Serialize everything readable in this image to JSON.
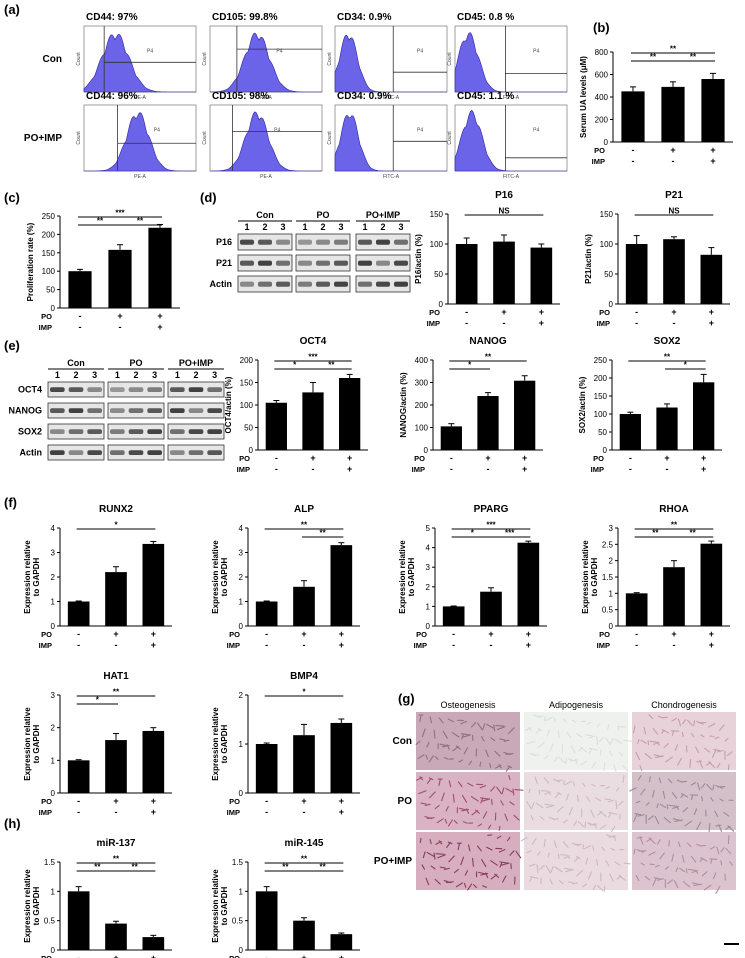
{
  "panel_labels": {
    "a": "(a)",
    "b": "(b)",
    "c": "(c)",
    "d": "(d)",
    "e": "(e)",
    "f": "(f)",
    "g": "(g)",
    "h": "(h)"
  },
  "groups": {
    "con": "Con",
    "po": "PO",
    "poimp": "PO+IMP"
  },
  "treat": {
    "po": "PO",
    "imp": "IMP"
  },
  "flow": {
    "rows": [
      "Con",
      "PO+IMP"
    ],
    "gate": "P4",
    "xaxis": [
      "PE-A",
      "PE-A",
      "FITC-A",
      "FITC-A"
    ],
    "titles": [
      [
        "CD44: 97%",
        "CD105: 99.8%",
        "CD34: 0.9%",
        "CD45: 0.8 %"
      ],
      [
        "CD44: 96%",
        "CD105: 98%",
        "CD34: 0.9%",
        "CD45: 1.1 %"
      ]
    ]
  },
  "blots": {
    "lanes": [
      "1",
      "2",
      "3"
    ],
    "d_rows": [
      "P16",
      "P21",
      "Actin"
    ],
    "e_rows": [
      "OCT4",
      "NANOG",
      "SOX2",
      "Actin"
    ]
  },
  "stain": {
    "cols": [
      "Osteogenesis",
      "Adipogenesis",
      "Chondrogenesis"
    ],
    "rows": [
      "Con",
      "PO",
      "PO+IMP"
    ]
  },
  "chart_data": [
    {
      "id": "b",
      "type": "bar",
      "title": "",
      "ylabel": "Serum UA levels (μM)",
      "ylim": [
        0,
        800
      ],
      "yticks": [
        "0",
        "200",
        "400",
        "600",
        "800"
      ],
      "values": [
        450,
        490,
        560
      ],
      "errors": [
        40,
        45,
        50
      ],
      "po": [
        "-",
        "+",
        "+"
      ],
      "imp": [
        "-",
        "-",
        "+"
      ],
      "sig": [
        {
          "a": 0,
          "b": 1,
          "label": "**",
          "level": 1
        },
        {
          "a": 1,
          "b": 2,
          "label": "**",
          "level": 1
        },
        {
          "a": 0,
          "b": 2,
          "label": "**",
          "level": 0
        }
      ]
    },
    {
      "id": "c",
      "type": "bar",
      "title": "",
      "ylabel": "Proliferation rate (%)",
      "ylim": [
        0,
        250
      ],
      "yticks": [
        "0",
        "50",
        "100",
        "150",
        "200",
        "250"
      ],
      "values": [
        100,
        158,
        218
      ],
      "errors": [
        5,
        14,
        9
      ],
      "po": [
        "-",
        "+",
        "+"
      ],
      "imp": [
        "-",
        "-",
        "+"
      ],
      "sig": [
        {
          "a": 0,
          "b": 1,
          "label": "**",
          "level": 1
        },
        {
          "a": 1,
          "b": 2,
          "label": "**",
          "level": 1
        },
        {
          "a": 0,
          "b": 2,
          "label": "***",
          "level": 0
        }
      ]
    },
    {
      "id": "p16",
      "type": "bar",
      "title": "P16",
      "ylabel": "P16/actin (%)",
      "ylim": [
        0,
        150
      ],
      "yticks": [
        "0",
        "50",
        "100",
        "150"
      ],
      "values": [
        100,
        104,
        94
      ],
      "errors": [
        10,
        11,
        6
      ],
      "po": [
        "-",
        "+",
        "+"
      ],
      "imp": [
        "-",
        "-",
        "+"
      ],
      "sig": [
        {
          "a": 0,
          "b": 2,
          "label": "NS",
          "level": 0
        }
      ]
    },
    {
      "id": "p21",
      "type": "bar",
      "title": "P21",
      "ylabel": "P21/actin (%)",
      "ylim": [
        0,
        150
      ],
      "yticks": [
        "0",
        "50",
        "100",
        "150"
      ],
      "values": [
        100,
        108,
        82
      ],
      "errors": [
        14,
        4,
        12
      ],
      "po": [
        "-",
        "+",
        "+"
      ],
      "imp": [
        "-",
        "-",
        "+"
      ],
      "sig": [
        {
          "a": 0,
          "b": 2,
          "label": "NS",
          "level": 0
        }
      ]
    },
    {
      "id": "oct4",
      "type": "bar",
      "title": "OCT4",
      "ylabel": "OCT4/actin (%)",
      "ylim": [
        0,
        200
      ],
      "yticks": [
        "0",
        "50",
        "100",
        "150",
        "200"
      ],
      "values": [
        105,
        128,
        160
      ],
      "errors": [
        5,
        22,
        8
      ],
      "po": [
        "-",
        "+",
        "+"
      ],
      "imp": [
        "-",
        "-",
        "+"
      ],
      "sig": [
        {
          "a": 0,
          "b": 1,
          "label": "*",
          "level": 1
        },
        {
          "a": 1,
          "b": 2,
          "label": "**",
          "level": 1
        },
        {
          "a": 0,
          "b": 2,
          "label": "***",
          "level": 0
        }
      ]
    },
    {
      "id": "nanog",
      "type": "bar",
      "title": "NANOG",
      "ylabel": "NANOG/actin (%)",
      "ylim": [
        0,
        400
      ],
      "yticks": [
        "0",
        "100",
        "200",
        "300",
        "400"
      ],
      "values": [
        105,
        240,
        308
      ],
      "errors": [
        12,
        15,
        22
      ],
      "po": [
        "-",
        "+",
        "+"
      ],
      "imp": [
        "-",
        "-",
        "+"
      ],
      "sig": [
        {
          "a": 0,
          "b": 1,
          "label": "*",
          "level": 1
        },
        {
          "a": 0,
          "b": 2,
          "label": "**",
          "level": 0
        }
      ]
    },
    {
      "id": "sox2",
      "type": "bar",
      "title": "SOX2",
      "ylabel": "SOX2/actin (%)",
      "ylim": [
        0,
        250
      ],
      "yticks": [
        "0",
        "50",
        "100",
        "150",
        "200",
        "250"
      ],
      "values": [
        100,
        118,
        188
      ],
      "errors": [
        5,
        10,
        22
      ],
      "po": [
        "-",
        "+",
        "+"
      ],
      "imp": [
        "-",
        "-",
        "+"
      ],
      "sig": [
        {
          "a": 1,
          "b": 2,
          "label": "*",
          "level": 1
        },
        {
          "a": 0,
          "b": 2,
          "label": "**",
          "level": 0
        }
      ]
    },
    {
      "id": "runx2",
      "type": "bar",
      "title": "RUNX2",
      "ylabel": "Expression relative to GAPDH",
      "ylim": [
        0,
        4
      ],
      "yticks": [
        "0",
        "1",
        "2",
        "3",
        "4"
      ],
      "values": [
        1.0,
        2.2,
        3.35
      ],
      "errors": [
        0.02,
        0.22,
        0.1
      ],
      "po": [
        "-",
        "+",
        "+"
      ],
      "imp": [
        "-",
        "-",
        "+"
      ],
      "sig": [
        {
          "a": 0,
          "b": 2,
          "label": "*",
          "level": 0
        }
      ]
    },
    {
      "id": "alp",
      "type": "bar",
      "title": "ALP",
      "ylabel": "Expression relative to GAPDH",
      "ylim": [
        0,
        4
      ],
      "yticks": [
        "0",
        "1",
        "2",
        "3",
        "4"
      ],
      "values": [
        1.0,
        1.6,
        3.3
      ],
      "errors": [
        0.02,
        0.25,
        0.1
      ],
      "po": [
        "-",
        "+",
        "+"
      ],
      "imp": [
        "-",
        "-",
        "+"
      ],
      "sig": [
        {
          "a": 1,
          "b": 2,
          "label": "**",
          "level": 1
        },
        {
          "a": 0,
          "b": 2,
          "label": "**",
          "level": 0
        }
      ]
    },
    {
      "id": "pparg",
      "type": "bar",
      "title": "PPARG",
      "ylabel": "Expression relative to GAPDH",
      "ylim": [
        0,
        5
      ],
      "yticks": [
        "0",
        "1",
        "2",
        "3",
        "4",
        "5"
      ],
      "values": [
        1.0,
        1.75,
        4.25
      ],
      "errors": [
        0.02,
        0.2,
        0.08
      ],
      "po": [
        "-",
        "+",
        "+"
      ],
      "imp": [
        "-",
        "-",
        "+"
      ],
      "sig": [
        {
          "a": 0,
          "b": 1,
          "label": "*",
          "level": 1
        },
        {
          "a": 1,
          "b": 2,
          "label": "***",
          "level": 1
        },
        {
          "a": 0,
          "b": 2,
          "label": "***",
          "level": 0
        }
      ]
    },
    {
      "id": "rhoa",
      "type": "bar",
      "title": "RHOA",
      "ylabel": "Expression relative to GAPDH",
      "ylim": [
        0,
        3
      ],
      "yticks": [
        "0",
        "0.5",
        "1",
        "1.5",
        "2",
        "2.5",
        "3"
      ],
      "values": [
        1.0,
        1.8,
        2.52
      ],
      "errors": [
        0.02,
        0.2,
        0.08
      ],
      "po": [
        "-",
        "+",
        "+"
      ],
      "imp": [
        "-",
        "-",
        "+"
      ],
      "sig": [
        {
          "a": 0,
          "b": 1,
          "label": "**",
          "level": 1
        },
        {
          "a": 1,
          "b": 2,
          "label": "**",
          "level": 1
        },
        {
          "a": 0,
          "b": 2,
          "label": "**",
          "level": 0
        }
      ]
    },
    {
      "id": "hat1",
      "type": "bar",
      "title": "HAT1",
      "ylabel": "Expression relative to GAPDH",
      "ylim": [
        0,
        3
      ],
      "yticks": [
        "0",
        "1",
        "2",
        "3"
      ],
      "values": [
        1.0,
        1.62,
        1.9
      ],
      "errors": [
        0.02,
        0.2,
        0.1
      ],
      "po": [
        "-",
        "+",
        "+"
      ],
      "imp": [
        "-",
        "-",
        "+"
      ],
      "sig": [
        {
          "a": 0,
          "b": 1,
          "label": "*",
          "level": 1
        },
        {
          "a": 0,
          "b": 2,
          "label": "**",
          "level": 0
        }
      ]
    },
    {
      "id": "bmp4",
      "type": "bar",
      "title": "BMP4",
      "ylabel": "Expression relative to GAPDH",
      "ylim": [
        0,
        2
      ],
      "yticks": [
        "0",
        "1",
        "2"
      ],
      "values": [
        1.0,
        1.18,
        1.43
      ],
      "errors": [
        0.02,
        0.22,
        0.08
      ],
      "po": [
        "-",
        "+",
        "+"
      ],
      "imp": [
        "-",
        "-",
        "+"
      ],
      "sig": [
        {
          "a": 0,
          "b": 2,
          "label": "*",
          "level": 0
        }
      ]
    },
    {
      "id": "mir137",
      "type": "bar",
      "title": "miR-137",
      "ylabel": "Expression relative to GAPDH",
      "ylim": [
        0,
        1.5
      ],
      "yticks": [
        "0",
        "0.5",
        "1",
        "1.5"
      ],
      "values": [
        1.0,
        0.45,
        0.22
      ],
      "errors": [
        0.08,
        0.04,
        0.03
      ],
      "po": [
        "-",
        "+",
        "+"
      ],
      "imp": [
        "-",
        "-",
        "+"
      ],
      "sig": [
        {
          "a": 0,
          "b": 1,
          "label": "**",
          "level": 1
        },
        {
          "a": 1,
          "b": 2,
          "label": "**",
          "level": 1
        },
        {
          "a": 0,
          "b": 2,
          "label": "**",
          "level": 0
        }
      ]
    },
    {
      "id": "mir145",
      "type": "bar",
      "title": "miR-145",
      "ylabel": "Expression relative to GAPDH",
      "ylim": [
        0,
        1.5
      ],
      "yticks": [
        "0",
        "0.5",
        "1",
        "1.5"
      ],
      "values": [
        1.0,
        0.5,
        0.27
      ],
      "errors": [
        0.08,
        0.05,
        0.02
      ],
      "po": [
        "-",
        "+",
        "+"
      ],
      "imp": [
        "-",
        "-",
        "+"
      ],
      "sig": [
        {
          "a": 0,
          "b": 1,
          "label": "**",
          "level": 1
        },
        {
          "a": 1,
          "b": 2,
          "label": "**",
          "level": 1
        },
        {
          "a": 0,
          "b": 2,
          "label": "**",
          "level": 0
        }
      ]
    }
  ]
}
